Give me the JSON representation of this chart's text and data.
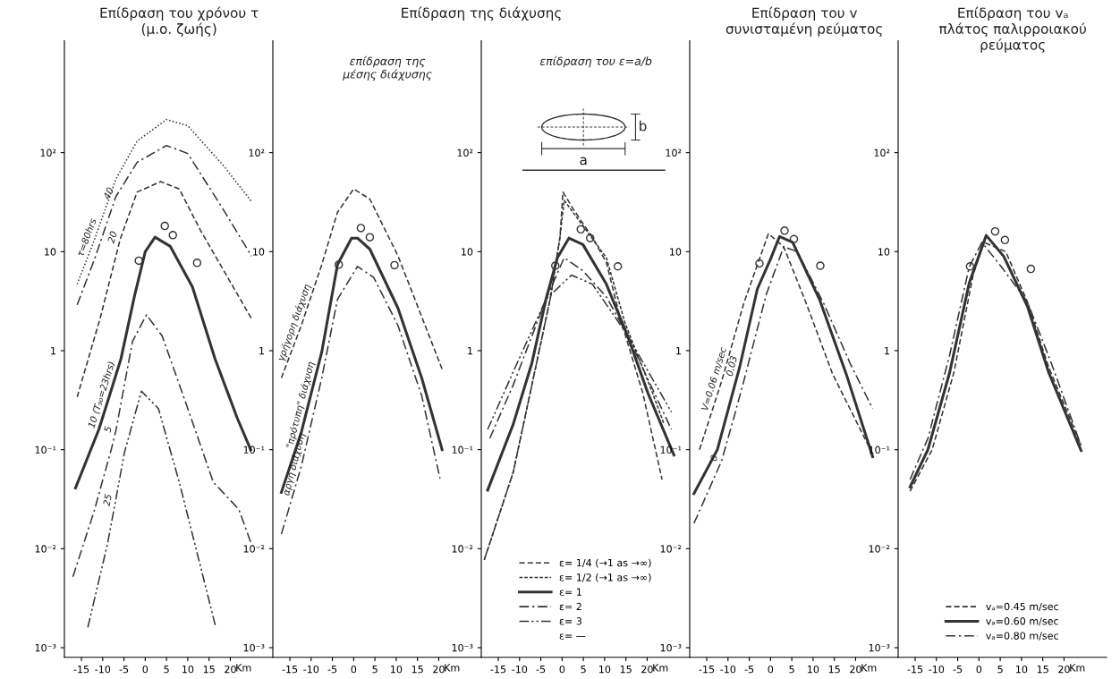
{
  "chart_data": [
    {
      "type": "line",
      "title": "Επίδραση του χρόνου τ\n(μ.ο. ζωής)",
      "xlabel": "Km",
      "log": true,
      "xlim": [
        -19,
        30
      ],
      "xticks": [
        -15,
        -10,
        -5,
        0,
        5,
        10,
        15,
        20
      ],
      "ylim": [
        0.0008,
        1350
      ],
      "yticks": [
        {
          "value": 0.001,
          "label": "10⁻³"
        },
        {
          "value": 0.01,
          "label": "10⁻²"
        },
        {
          "value": 0.1,
          "label": "10⁻¹"
        },
        {
          "value": 1,
          "label": "1"
        },
        {
          "value": 10,
          "label": "10"
        },
        {
          "value": 100,
          "label": "10²"
        }
      ],
      "series": [
        {
          "color": "#333333",
          "line_style": "dotted",
          "x": [
            -16,
            -12,
            -6.9,
            -1.9,
            5,
            10,
            18.5,
            25
          ],
          "values": [
            4.7,
            13,
            54,
            131,
            216,
            187,
            73,
            32
          ]
        },
        {
          "color": "#333333",
          "line_style": "dashdot",
          "x": [
            -16,
            -12,
            -6.9,
            -1.9,
            5,
            10,
            18.5,
            25
          ],
          "values": [
            2.9,
            8.2,
            36,
            80,
            118,
            98,
            26,
            9
          ]
        },
        {
          "color": "#333333",
          "line_style": "dashed",
          "x": [
            -16,
            -10.5,
            -5.9,
            -1.9,
            3.6,
            8,
            13,
            25
          ],
          "values": [
            0.34,
            2.2,
            13.3,
            40,
            51,
            43,
            16.4,
            2.1
          ]
        },
        {
          "color": "#333333",
          "line_style": "solid",
          "x": [
            -16.4,
            -10.9,
            -8.5,
            -5.7,
            -2.5,
            0,
            2.3,
            5.9,
            11.1,
            16.4,
            21.6,
            24.8
          ],
          "values": [
            0.041,
            0.16,
            0.34,
            0.83,
            3.6,
            10,
            14,
            11.3,
            4.4,
            0.83,
            0.21,
            0.1
          ]
        },
        {
          "color": "#333333",
          "line_style": "dashdot",
          "x": [
            -17,
            -12,
            -8,
            -6.9,
            -3,
            0.3,
            4,
            10,
            16,
            22,
            25
          ],
          "values": [
            0.0052,
            0.024,
            0.1,
            0.155,
            1.24,
            2.3,
            1.4,
            0.26,
            0.047,
            0.025,
            0.011
          ]
        },
        {
          "color": "#333333",
          "line_style": "dashdotdot",
          "x": [
            -13.5,
            -8.9,
            -7,
            -4.9,
            -0.9,
            3.1,
            8,
            13,
            16.6
          ],
          "values": [
            0.0016,
            0.011,
            0.03,
            0.093,
            0.39,
            0.26,
            0.047,
            0.0066,
            0.0016
          ]
        },
        {
          "type": "scatter",
          "marker": "circle",
          "color": "#333333",
          "x": [
            -1.5,
            4.6,
            6.5,
            12.2
          ],
          "values": [
            8.1,
            18.2,
            14.7,
            7.7
          ]
        }
      ],
      "annotations": [
        {
          "text": "τ=80hrs",
          "x": -12,
          "y": 13
        },
        {
          "text": "40",
          "x": -6.9,
          "y": 36
        },
        {
          "text": "20",
          "x": -5.9,
          "y": 13.3
        },
        {
          "text": "10 (T₉₀=23hrs)",
          "x": -8.5,
          "y": 0.34
        },
        {
          "text": "5",
          "x": -6.9,
          "y": 0.155
        },
        {
          "text": "25",
          "x": -7,
          "y": 0.03
        }
      ]
    },
    {
      "type": "line",
      "title": "Επίδραση της διάχυσης",
      "subtitle": "επίδραση της\nμέσης διάχυσης",
      "xlabel": "Km",
      "log": true,
      "xlim": [
        -19,
        30
      ],
      "xticks": [
        -15,
        -10,
        -5,
        0,
        5,
        10,
        15,
        20
      ],
      "ylim": [
        0.0008,
        1350
      ],
      "yticks": [
        {
          "value": 0.001,
          "label": "10⁻³"
        },
        {
          "value": 0.01,
          "label": "10⁻²"
        },
        {
          "value": 0.1,
          "label": "10⁻¹"
        },
        {
          "value": 1,
          "label": "1"
        },
        {
          "value": 10,
          "label": "10"
        },
        {
          "value": 100,
          "label": "10²"
        }
      ],
      "series": [
        {
          "color": "#333333",
          "line_style": "dashed",
          "x": [
            -17,
            -12.3,
            -7.5,
            -3.8,
            0,
            3.8,
            10.4,
            16,
            20.8
          ],
          "values": [
            0.53,
            1.8,
            7.4,
            25,
            43,
            34,
            9.1,
            2.2,
            0.65
          ]
        },
        {
          "color": "#333333",
          "line_style": "solid",
          "x": [
            -17,
            -12.3,
            -10.8,
            -7.5,
            -3.8,
            -0.5,
            0.9,
            3.8,
            10.4,
            16,
            20.8
          ],
          "values": [
            0.037,
            0.15,
            0.27,
            0.97,
            7.4,
            13.7,
            13.7,
            10.6,
            2.7,
            0.53,
            0.1
          ]
        },
        {
          "color": "#333333",
          "line_style": "dashdot",
          "x": [
            -17,
            -12.3,
            -7.5,
            -6.1,
            -3.8,
            0.9,
            4.7,
            10.4,
            16,
            20.3
          ],
          "values": [
            0.014,
            0.068,
            0.53,
            1.06,
            3.3,
            7.1,
            5.5,
            1.8,
            0.35,
            0.051
          ]
        },
        {
          "type": "scatter",
          "marker": "circle",
          "color": "#333333",
          "x": [
            -3.5,
            1.7,
            3.8,
            9.6
          ],
          "values": [
            7.4,
            17.3,
            14,
            7.3
          ]
        }
      ],
      "annotations": [
        {
          "text": "γρήγορη διάχυση",
          "x": -12.3,
          "y": 1.8
        },
        {
          "text": "\"πρότυπη\" διάχυση",
          "x": -10.8,
          "y": 0.27
        },
        {
          "text": "αργή διάχυση",
          "x": -12.3,
          "y": 0.068
        }
      ]
    },
    {
      "type": "line",
      "title": null,
      "subtitle": "επίδραση του ε=a/b",
      "xlabel": "Km",
      "log": true,
      "legend": "bottom",
      "xlim": [
        -19,
        30
      ],
      "xticks": [
        -15,
        -10,
        -5,
        0,
        5,
        10,
        15,
        20
      ],
      "ylim": [
        0.0008,
        1350
      ],
      "yticks": [
        {
          "value": 0.001,
          "label": "10⁻³"
        },
        {
          "value": 0.01,
          "label": "10⁻²"
        },
        {
          "value": 0.1,
          "label": "10⁻¹"
        },
        {
          "value": 1,
          "label": "1"
        },
        {
          "value": 10,
          "label": "10"
        },
        {
          "value": 100,
          "label": "10²"
        }
      ],
      "series": [
        {
          "name": "ε= 1/4 (→1 as →∞)",
          "color": "#333333",
          "line_style": "dashed",
          "x": [
            -18.3,
            -11.5,
            -6,
            -2.7,
            -0.5,
            0.2,
            2.7,
            7.1,
            10.4,
            13.7,
            19,
            23.5
          ],
          "values": [
            0.0077,
            0.059,
            0.75,
            3.5,
            14,
            40,
            26.6,
            14,
            7.8,
            2.1,
            0.37,
            0.05
          ]
        },
        {
          "name": "ε= 1/2 (→1 as →∞)",
          "color": "#333333",
          "line_style": "densedash",
          "x": [
            -18.3,
            -11.5,
            -6,
            -2.7,
            -0.5,
            0.5,
            10.4,
            14.8,
            21.3,
            24
          ],
          "values": [
            0.0077,
            0.059,
            0.75,
            3.5,
            14,
            33,
            8.7,
            1.9,
            0.37,
            0.18
          ]
        },
        {
          "name": "ε= 1",
          "color": "#333333",
          "line_style": "solid",
          "x": [
            -17.5,
            -11.5,
            -7.1,
            -3.8,
            -1.1,
            1.6,
            4.9,
            10.4,
            15.3,
            20.2,
            26.3
          ],
          "values": [
            0.039,
            0.18,
            0.75,
            3.3,
            8.7,
            13.7,
            11.8,
            4.7,
            1.45,
            0.37,
            0.088
          ]
        },
        {
          "name": "ε= 2",
          "color": "#333333",
          "line_style": "dashdot",
          "x": [
            -17,
            -11.5,
            -3.8,
            0.5,
            4.9,
            10.4,
            15.3,
            25.7
          ],
          "values": [
            0.13,
            0.45,
            3.3,
            8.7,
            6.4,
            3.5,
            1.45,
            0.16
          ]
        },
        {
          "name": "ε= 3",
          "color": "#333333",
          "line_style": "dashdotdot",
          "x": [
            -17.5,
            -11.5,
            -3.8,
            2.2,
            7.1,
            15.3,
            25.7
          ],
          "values": [
            0.16,
            0.61,
            3.3,
            5.8,
            4.7,
            1.45,
            0.24
          ]
        },
        {
          "type": "scatter",
          "marker": "circle",
          "color": "#333333",
          "x": [
            -1.6,
            4.4,
            6.6,
            13.1
          ],
          "values": [
            7.2,
            16.8,
            13.7,
            7.1
          ]
        }
      ],
      "annotations": [
        "a",
        "b",
        "ε= —"
      ]
    },
    {
      "type": "line",
      "title": "Επίδραση του v\nσυνισταμένη ρεύματος",
      "xlabel": "Km",
      "log": true,
      "xlim": [
        -19,
        30
      ],
      "xticks": [
        -15,
        -10,
        -5,
        0,
        5,
        10,
        15,
        20
      ],
      "ylim": [
        0.0008,
        1350
      ],
      "yticks": [
        {
          "value": 0.001,
          "label": "10⁻³"
        },
        {
          "value": 0.01,
          "label": "10⁻²"
        },
        {
          "value": 0.1,
          "label": "10⁻¹"
        },
        {
          "value": 1,
          "label": "1"
        },
        {
          "value": 10,
          "label": "10"
        },
        {
          "value": 100,
          "label": "10²"
        }
      ],
      "series": [
        {
          "color": "#333333",
          "line_style": "dashed",
          "x": [
            -16.7,
            -11.5,
            -6.3,
            -0.5,
            3.1,
            8.4,
            14.6,
            23
          ],
          "values": [
            0.1,
            0.49,
            3,
            15.2,
            11.2,
            3,
            0.58,
            0.11
          ]
        },
        {
          "color": "#333333",
          "line_style": "solid",
          "x": [
            -18,
            -12.5,
            -10,
            -7.3,
            -3.1,
            0,
            2.1,
            5.2,
            11.5,
            17.8,
            24
          ],
          "values": [
            0.036,
            0.1,
            0.25,
            0.67,
            4.2,
            8.4,
            14.2,
            12.4,
            3.3,
            0.58,
            0.085
          ]
        },
        {
          "color": "#333333",
          "line_style": "dashdot",
          "x": [
            -18,
            -11.5,
            -8.5,
            -6.3,
            -1,
            3.1,
            6.3,
            12.5,
            18.8,
            24
          ],
          "values": [
            0.018,
            0.077,
            0.22,
            0.49,
            3.7,
            11.2,
            10,
            3,
            0.73,
            0.26
          ]
        },
        {
          "type": "scatter",
          "marker": "circle",
          "color": "#333333",
          "x": [
            -2.6,
            3.3,
            5.5,
            11.7
          ],
          "values": [
            7.6,
            16.3,
            13.4,
            7.2
          ]
        }
      ],
      "annotations": [
        {
          "text": "V=0.06 m/sec",
          "x": -11.5,
          "y": 0.49
        },
        {
          "text": "0.03",
          "x": -7.3,
          "y": 0.67
        },
        {
          "text": "0",
          "x": -11.5,
          "y": 0.077
        }
      ]
    },
    {
      "type": "line",
      "title": "Επίδραση του vₐ\nπλάτος παλιρροιακού\nρεύματος",
      "xlabel": "Km",
      "log": true,
      "legend": "bottom",
      "xlim": [
        -19,
        30
      ],
      "xticks": [
        -15,
        -10,
        -5,
        0,
        5,
        10,
        15,
        20
      ],
      "ylim": [
        0.0008,
        1350
      ],
      "yticks": [
        {
          "value": 0.001,
          "label": "10⁻³"
        },
        {
          "value": 0.01,
          "label": "10⁻²"
        },
        {
          "value": 0.1,
          "label": "10⁻¹"
        },
        {
          "value": 1,
          "label": "1"
        },
        {
          "value": 10,
          "label": "10"
        },
        {
          "value": 100,
          "label": "10²"
        }
      ],
      "series": [
        {
          "name": "vₐ=0.45 m/sec",
          "color": "#333333",
          "line_style": "dashed",
          "x": [
            -16.2,
            -11,
            -5.9,
            -1.3,
            1.2,
            6.3,
            11.4,
            16.4,
            24
          ],
          "values": [
            0.038,
            0.1,
            0.6,
            6,
            12.4,
            10,
            3.1,
            0.68,
            0.11
          ]
        },
        {
          "name": "vₐ=0.60 m/sec",
          "color": "#333333",
          "line_style": "solid",
          "x": [
            -16.2,
            -12,
            -6.9,
            -2.3,
            1.7,
            5.8,
            11.4,
            16.4,
            24
          ],
          "values": [
            0.042,
            0.1,
            0.6,
            4.8,
            14.6,
            9,
            2.8,
            0.6,
            0.098
          ]
        },
        {
          "name": "vₐ=0.80 m/sec",
          "color": "#333333",
          "line_style": "dashdot",
          "x": [
            -16.2,
            -12,
            -6.9,
            -2.3,
            0.7,
            5.3,
            11.4,
            17,
            24
          ],
          "values": [
            0.05,
            0.13,
            0.9,
            7,
            12.4,
            7,
            3.1,
            0.75,
            0.11
          ]
        },
        {
          "type": "scatter",
          "marker": "circle",
          "color": "#333333",
          "x": [
            -2.1,
            3.8,
            6.1,
            12.2
          ],
          "values": [
            7.1,
            16,
            13.1,
            6.7
          ]
        }
      ]
    }
  ]
}
